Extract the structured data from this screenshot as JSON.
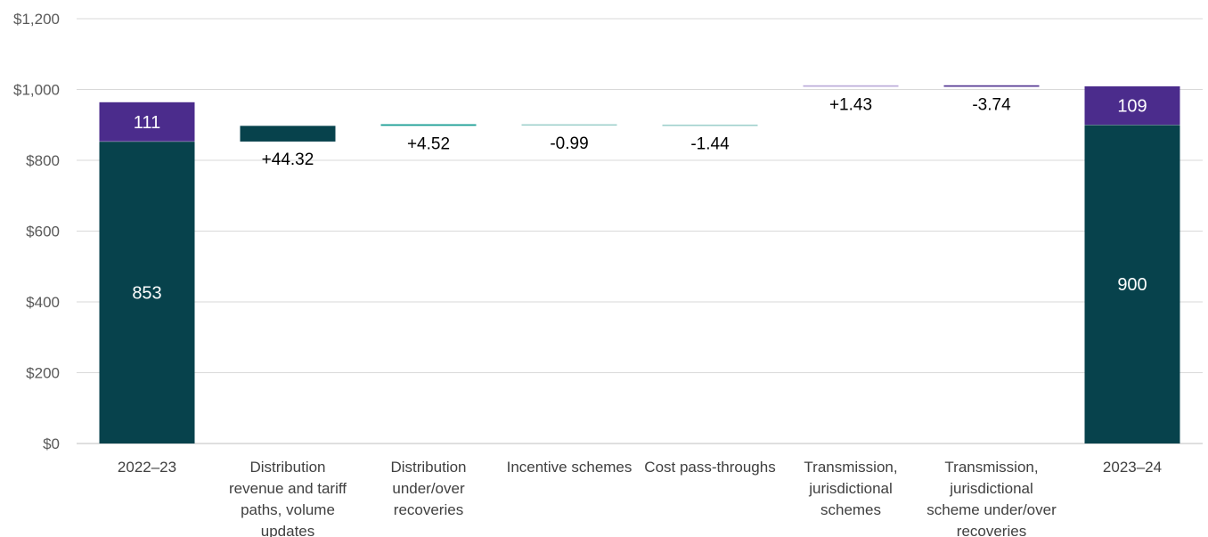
{
  "chart_data": {
    "type": "bar",
    "subtype": "waterfall",
    "title": "",
    "xlabel": "",
    "ylabel": "",
    "ylim": [
      0,
      1200
    ],
    "yticks": [
      "$0",
      "$200",
      "$400",
      "$600",
      "$800",
      "$1,000",
      "$1,200"
    ],
    "ytick_values": [
      0,
      200,
      400,
      600,
      800,
      1000,
      1200
    ],
    "grid": true,
    "legend": "none",
    "colors": {
      "distribution": "#07424c",
      "transmission": "#4b2c8c",
      "teal_step": "#1a9e94",
      "light_step": "#9fd0cc",
      "pale_purple_step": "#b9a8d8"
    },
    "totals": [
      {
        "category": "2022–23",
        "distribution": 853,
        "transmission": 111,
        "distribution_label": "853",
        "transmission_label": "111"
      },
      {
        "category": "2023–24",
        "distribution": 900,
        "transmission": 109,
        "distribution_label": "900",
        "transmission_label": "109"
      }
    ],
    "steps": [
      {
        "category": "Distribution revenue and tariff paths, volume updates",
        "lines": [
          "Distribution",
          "revenue and tariff",
          "paths, volume",
          "updates"
        ],
        "start": 853,
        "end": 897.32,
        "label": "+44.32"
      },
      {
        "category": "Distribution under/over recoveries",
        "lines": [
          "Distribution",
          "under/over",
          "recoveries"
        ],
        "start": 897.32,
        "end": 901.84,
        "label": "+4.52"
      },
      {
        "category": "Incentive schemes",
        "lines": [
          "Incentive schemes"
        ],
        "start": 901.84,
        "end": 900.85,
        "label": "-0.99"
      },
      {
        "category": "Cost pass-throughs",
        "lines": [
          "Cost pass-throughs"
        ],
        "start": 900.85,
        "end": 899.41,
        "label": "-1.44"
      },
      {
        "category": "Transmission, jurisdictional schemes",
        "lines": [
          "Transmission,",
          "jurisdictional",
          "schemes"
        ],
        "start": 1010.41,
        "end": 1011.84,
        "label": "+1.43"
      },
      {
        "category": "Transmission, jurisdictional scheme under/over recoveries",
        "lines": [
          "Transmission,",
          "jurisdictional",
          "scheme under/over",
          "recoveries"
        ],
        "start": 1011.84,
        "end": 1008.1,
        "label": "-3.74"
      }
    ],
    "first_category_lines": [
      "2022–23"
    ],
    "last_category_lines": [
      "2023–24"
    ]
  }
}
